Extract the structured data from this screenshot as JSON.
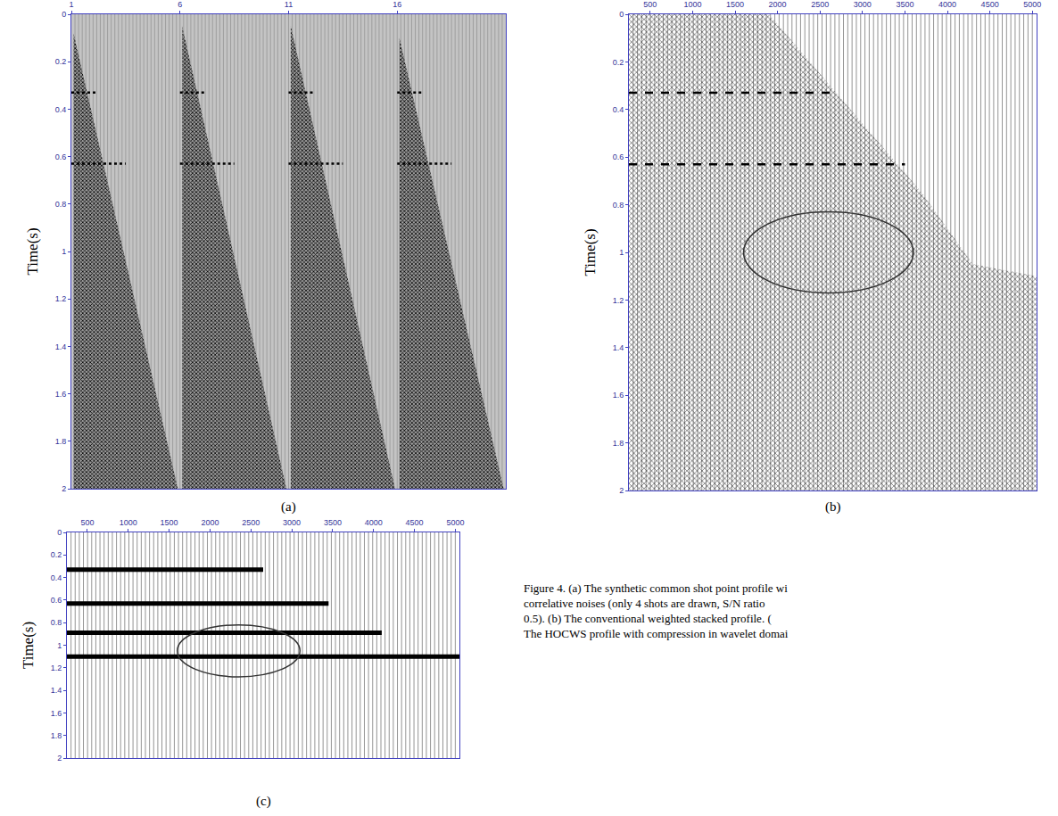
{
  "chart_data": [
    {
      "type": "seismic",
      "label": "(a)",
      "ylabel": "Time(s)",
      "xlim": [
        1,
        21
      ],
      "xticks": [
        1,
        6,
        11,
        16
      ],
      "ylim": [
        2,
        0
      ],
      "yticks": [
        0,
        0.2,
        0.4,
        0.6,
        0.8,
        1,
        1.2,
        1.4,
        1.6,
        1.8,
        2
      ],
      "color": "#000000",
      "line_style": "dot",
      "noise": [
        {
          "x": [
            1.1,
            1.1,
            5.9
          ],
          "y": [
            0.08,
            2,
            2
          ]
        },
        {
          "x": [
            6.1,
            6.1,
            10.9
          ],
          "y": [
            0.05,
            2,
            2
          ]
        },
        {
          "x": [
            11.1,
            11.1,
            15.9
          ],
          "y": [
            0.05,
            2,
            2
          ]
        },
        {
          "x": [
            16.1,
            16.1,
            20.9
          ],
          "y": [
            0.1,
            2,
            2
          ]
        }
      ],
      "events": [
        {
          "x": [
            1,
            2.2
          ],
          "y": 0.33
        },
        {
          "x": [
            1,
            3.5
          ],
          "y": 0.63
        },
        {
          "x": [
            6,
            7.2
          ],
          "y": 0.33
        },
        {
          "x": [
            6,
            8.5
          ],
          "y": 0.63
        },
        {
          "x": [
            11,
            12.2
          ],
          "y": 0.33
        },
        {
          "x": [
            11,
            13.5
          ],
          "y": 0.63
        },
        {
          "x": [
            16,
            17.2
          ],
          "y": 0.33
        },
        {
          "x": [
            16,
            18.5
          ],
          "y": 0.63
        }
      ]
    },
    {
      "type": "seismic",
      "label": "(b)",
      "ylabel": "Time(s)",
      "xlim": [
        250,
        5050
      ],
      "xticks": [
        500,
        1000,
        1500,
        2000,
        2500,
        3000,
        3500,
        4000,
        4500,
        5000
      ],
      "ylim": [
        2,
        0
      ],
      "yticks": [
        0,
        0.2,
        0.4,
        0.6,
        0.8,
        1,
        1.2,
        1.4,
        1.6,
        1.8,
        2
      ],
      "color": "#000000",
      "line_style": "dash",
      "noise": [
        {
          "x": [
            250,
            1900,
            3700,
            4300,
            5050,
            5050,
            250
          ],
          "y": [
            0,
            0,
            0.75,
            1.05,
            1.1,
            2,
            2
          ]
        }
      ],
      "events": [
        {
          "x": [
            250,
            2700
          ],
          "y": 0.33
        },
        {
          "x": [
            250,
            3500
          ],
          "y": 0.63
        }
      ],
      "highlight": {
        "x": [
          1600,
          3600
        ],
        "y": [
          0.83,
          1.17
        ]
      }
    },
    {
      "type": "seismic",
      "label": "(c)",
      "ylabel": "Time(s)",
      "xlim": [
        250,
        5050
      ],
      "xticks": [
        500,
        1000,
        1500,
        2000,
        2500,
        3000,
        3500,
        4000,
        4500,
        5000
      ],
      "ylim": [
        2,
        0
      ],
      "yticks": [
        0,
        0.2,
        0.4,
        0.6,
        0.8,
        1,
        1.2,
        1.4,
        1.6,
        1.8,
        2
      ],
      "color": "#000000",
      "line_style": "solid",
      "noise": [],
      "events": [
        {
          "x": [
            250,
            2650
          ],
          "y": 0.33
        },
        {
          "x": [
            250,
            3450
          ],
          "y": 0.63
        },
        {
          "x": [
            250,
            4100
          ],
          "y": 0.89
        },
        {
          "x": [
            250,
            5050
          ],
          "y": 1.1
        }
      ],
      "highlight": {
        "x": [
          1600,
          3100
        ],
        "y": [
          0.82,
          1.28
        ]
      }
    }
  ],
  "caption": [
    "Figure 4. (a) The synthetic common shot point profile wi",
    "correlative noises (only 4 shots are drawn, S/N ratio",
    "0.5). (b) The conventional weighted stacked profile. (",
    "The HOCWS profile with compression in wavelet domai"
  ]
}
